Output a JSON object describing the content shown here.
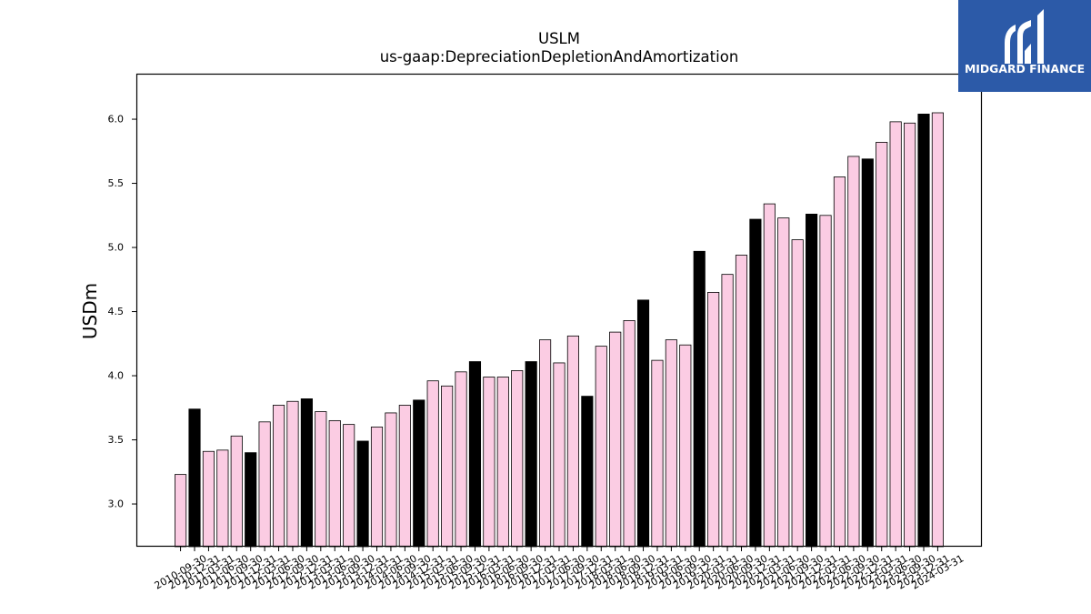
{
  "logo": {
    "text": "MIDGARD FINANCE",
    "background": "#2c5aa8",
    "icon": "midgard-m-icon"
  },
  "chart_data": {
    "type": "bar",
    "title": "USLM",
    "subtitle": "us-gaap:DepreciationDepletionAndAmortization",
    "xlabel": "",
    "ylabel": "USDm",
    "ylim": [
      2.667,
      6.355
    ],
    "yticks": [
      "3.0",
      "3.5",
      "4.0",
      "4.5",
      "5.0",
      "5.5",
      "6.0"
    ],
    "grid": false,
    "legend": "none",
    "edge_color": "#000000",
    "categories": [
      "2010-09-30",
      "2010-12-31",
      "2011-03-31",
      "2011-06-30",
      "2011-09-30",
      "2011-12-31",
      "2012-03-31",
      "2012-06-30",
      "2012-09-30",
      "2012-12-31",
      "2013-03-31",
      "2013-06-30",
      "2013-09-30",
      "2013-12-31",
      "2014-03-31",
      "2014-06-30",
      "2014-09-30",
      "2014-12-31",
      "2015-03-31",
      "2015-06-30",
      "2015-09-30",
      "2015-12-31",
      "2016-03-31",
      "2016-06-30",
      "2016-09-30",
      "2016-12-31",
      "2017-03-31",
      "2017-06-30",
      "2017-09-30",
      "2017-12-31",
      "2018-03-31",
      "2018-06-30",
      "2018-09-30",
      "2018-12-31",
      "2019-03-31",
      "2019-06-30",
      "2019-09-30",
      "2019-12-31",
      "2020-03-31",
      "2020-06-30",
      "2020-09-30",
      "2020-12-31",
      "2021-03-31",
      "2021-06-30",
      "2021-09-30",
      "2021-12-31",
      "2022-03-31",
      "2022-06-30",
      "2022-09-30",
      "2022-12-31",
      "2023-03-31",
      "2023-06-30",
      "2023-09-30",
      "2023-12-31",
      "2024-03-31"
    ],
    "values": [
      3.23,
      3.74,
      3.41,
      3.42,
      3.53,
      3.4,
      3.64,
      3.77,
      3.8,
      3.82,
      3.72,
      3.65,
      3.62,
      3.49,
      3.6,
      3.71,
      3.77,
      3.81,
      3.96,
      3.92,
      4.03,
      4.11,
      3.99,
      3.99,
      4.04,
      4.11,
      4.28,
      4.1,
      4.31,
      3.84,
      4.23,
      4.34,
      4.43,
      4.59,
      4.12,
      4.28,
      4.24,
      4.97,
      4.65,
      4.79,
      4.94,
      5.22,
      5.34,
      5.23,
      5.06,
      5.26,
      5.25,
      5.55,
      5.71,
      5.69,
      5.82,
      5.98,
      5.97,
      6.04,
      6.05
    ],
    "colors": [
      "#fbcce3",
      "#000000",
      "#fbcce3",
      "#fbcce3",
      "#fbcce3",
      "#000000",
      "#fbcce3",
      "#fbcce3",
      "#fbcce3",
      "#000000",
      "#fbcce3",
      "#fbcce3",
      "#fbcce3",
      "#000000",
      "#fbcce3",
      "#fbcce3",
      "#fbcce3",
      "#000000",
      "#fbcce3",
      "#fbcce3",
      "#fbcce3",
      "#000000",
      "#fbcce3",
      "#fbcce3",
      "#fbcce3",
      "#000000",
      "#fbcce3",
      "#fbcce3",
      "#fbcce3",
      "#000000",
      "#fbcce3",
      "#fbcce3",
      "#fbcce3",
      "#000000",
      "#fbcce3",
      "#fbcce3",
      "#fbcce3",
      "#000000",
      "#fbcce3",
      "#fbcce3",
      "#fbcce3",
      "#000000",
      "#fbcce3",
      "#fbcce3",
      "#fbcce3",
      "#000000",
      "#fbcce3",
      "#fbcce3",
      "#fbcce3",
      "#000000",
      "#fbcce3",
      "#fbcce3",
      "#fbcce3",
      "#000000",
      "#fbcce3"
    ]
  }
}
